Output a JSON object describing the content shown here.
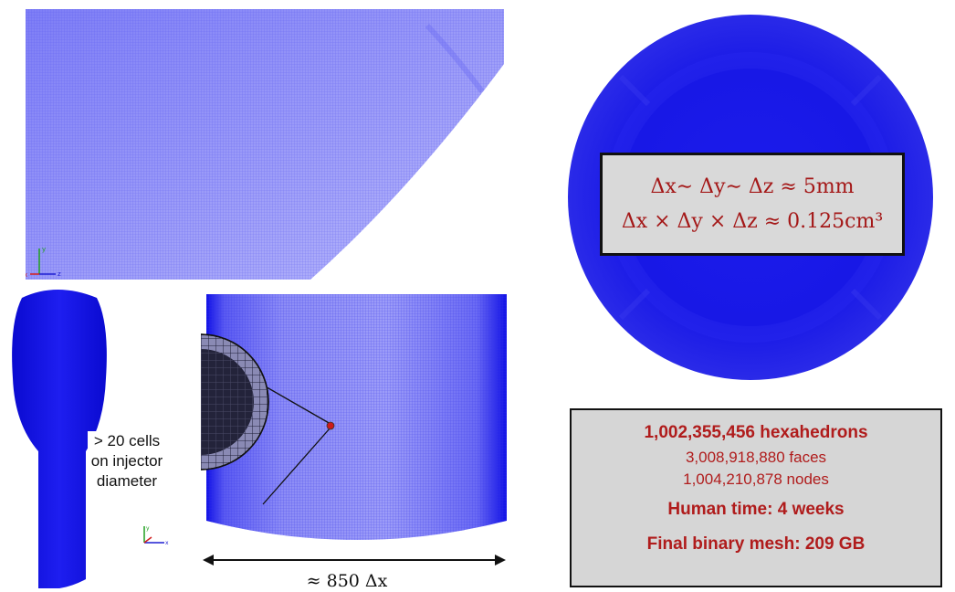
{
  "colors": {
    "mesh_blue": "#1a1ae8",
    "mesh_light": "#8f8ff6",
    "annotation_red": "#b01c1c",
    "box_gray": "#d6d6d6"
  },
  "cell_size_box": {
    "line1": "Δx∼ Δy∼ Δz ≈ 5mm",
    "line2": "Δx × Δy × Δz ≈ 0.125cm³"
  },
  "injector_note": {
    "line1": "> 20 cells",
    "line2": "on injector",
    "line3": "diameter"
  },
  "span_note": "≈ 850 Δx",
  "stats": {
    "hexahedrons": "1,002,355,456 hexahedrons",
    "faces": "3,008,918,880 faces",
    "nodes": "1,004,210,878 nodes",
    "human_time": "Human time: 4 weeks",
    "final_mesh": "Final binary mesh: 209 GB"
  },
  "axes_triad": {
    "x": "x",
    "y": "y",
    "z": "z"
  }
}
